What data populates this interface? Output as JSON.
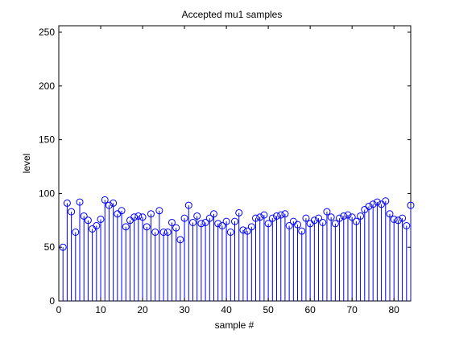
{
  "chart_data": {
    "type": "stem",
    "title": "Accepted mu1 samples",
    "xlabel": "sample #",
    "ylabel": "level",
    "xlim": [
      0,
      84
    ],
    "ylim": [
      0,
      256
    ],
    "xticks": [
      0,
      10,
      20,
      30,
      40,
      50,
      60,
      70,
      80
    ],
    "yticks": [
      0,
      50,
      100,
      150,
      200,
      250
    ],
    "grid": false,
    "marker": "circle",
    "series_color": "#0000ff",
    "x": [
      1,
      2,
      3,
      4,
      5,
      6,
      7,
      8,
      9,
      10,
      11,
      12,
      13,
      14,
      15,
      16,
      17,
      18,
      19,
      20,
      21,
      22,
      23,
      24,
      25,
      26,
      27,
      28,
      29,
      30,
      31,
      32,
      33,
      34,
      35,
      36,
      37,
      38,
      39,
      40,
      41,
      42,
      43,
      44,
      45,
      46,
      47,
      48,
      49,
      50,
      51,
      52,
      53,
      54,
      55,
      56,
      57,
      58,
      59,
      60,
      61,
      62,
      63,
      64,
      65,
      66,
      67,
      68,
      69,
      70,
      71,
      72,
      73,
      74,
      75,
      76,
      77,
      78,
      79,
      80,
      81,
      82,
      83,
      84
    ],
    "values": [
      50,
      91,
      83,
      64,
      92,
      79,
      75,
      67,
      70,
      76,
      94,
      89,
      91,
      81,
      84,
      69,
      75,
      78,
      79,
      78,
      69,
      81,
      64,
      84,
      64,
      64,
      73,
      68,
      57,
      77,
      89,
      73,
      79,
      72,
      73,
      77,
      81,
      72,
      70,
      74,
      64,
      74,
      82,
      66,
      65,
      69,
      77,
      78,
      80,
      72,
      77,
      79,
      80,
      81,
      70,
      74,
      71,
      65,
      77,
      72,
      75,
      77,
      73,
      83,
      78,
      72,
      77,
      79,
      80,
      78,
      74,
      79,
      85,
      88,
      90,
      92,
      90,
      93,
      81,
      76,
      75,
      77,
      70,
      89
    ]
  }
}
